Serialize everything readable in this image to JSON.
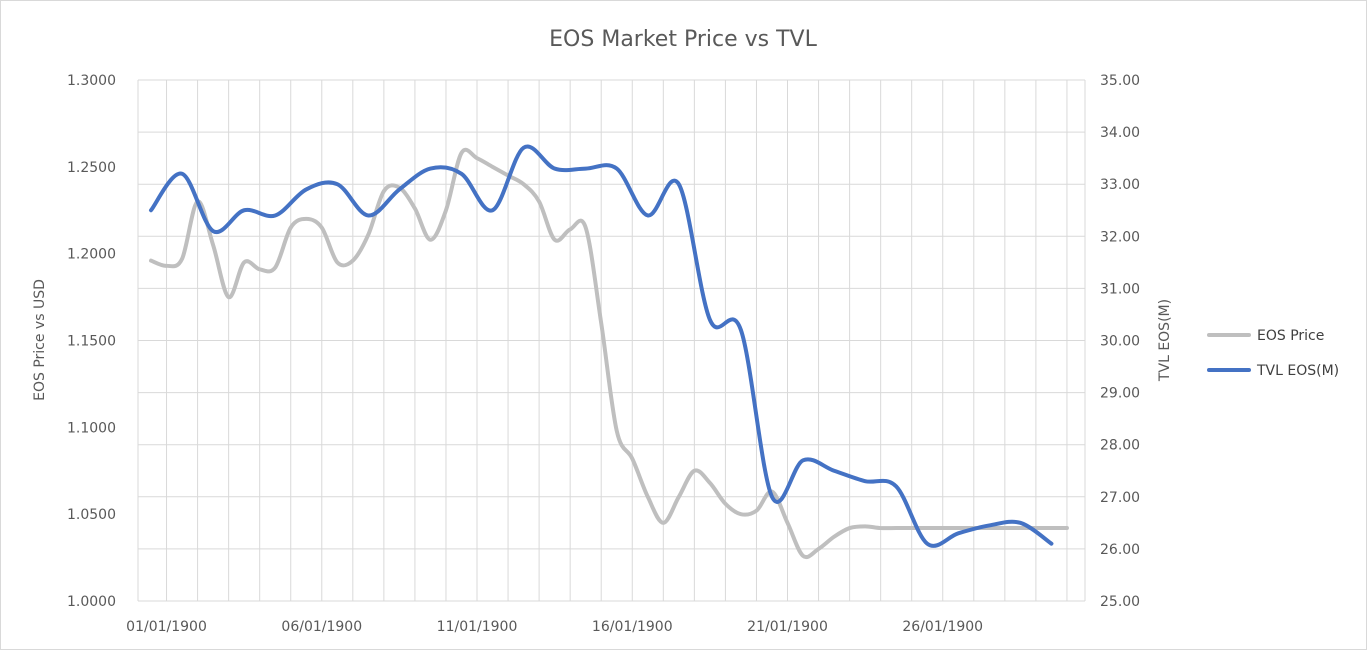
{
  "chart_data": {
    "type": "line",
    "title": "EOS Market Price vs TVL",
    "ylabel": "EOS Price vs USD",
    "y2label": "TVL EOS(M)",
    "xlabel": "",
    "grid": true,
    "legend_position": "right",
    "x_tick_labels": [
      "01/01/1900",
      "06/01/1900",
      "11/01/1900",
      "16/01/1900",
      "21/01/1900",
      "26/01/1900"
    ],
    "x_tick_days": [
      1,
      6,
      11,
      16,
      21,
      26
    ],
    "x_days": [
      0.5,
      1,
      1.5,
      2,
      2.5,
      3,
      3.5,
      4,
      4.5,
      5,
      5.5,
      6,
      6.5,
      7,
      7.5,
      8,
      8.5,
      9,
      9.5,
      10,
      10.5,
      11,
      11.5,
      12,
      12.5,
      13,
      13.5,
      14,
      14.5,
      15,
      15.5,
      16,
      16.5,
      17,
      17.5,
      18,
      18.5,
      19,
      19.5,
      20,
      20.5,
      21,
      21.5,
      22,
      22.5,
      23,
      23.5,
      24,
      24.5,
      25,
      25.5,
      26,
      26.5,
      27,
      27.5,
      28,
      28.5,
      29,
      29.5,
      30
    ],
    "y_left_ticks": [
      "1.0000",
      "1.0500",
      "1.1000",
      "1.1500",
      "1.2000",
      "1.2500",
      "1.3000"
    ],
    "y_left_range": [
      1.0,
      1.3
    ],
    "y_right_ticks": [
      "25.00",
      "26.00",
      "27.00",
      "28.00",
      "29.00",
      "30.00",
      "31.00",
      "32.00",
      "33.00",
      "34.00",
      "35.00"
    ],
    "y_right_range": [
      25,
      35
    ],
    "series": [
      {
        "name": "EOS Price",
        "axis": "left",
        "color": "#bfbfbf",
        "values": [
          1.196,
          1.193,
          1.197,
          1.23,
          1.205,
          1.175,
          1.195,
          1.191,
          1.192,
          1.215,
          1.22,
          1.215,
          1.195,
          1.196,
          1.211,
          1.236,
          1.238,
          1.226,
          1.208,
          1.225,
          1.258,
          1.255,
          1.25,
          1.245,
          1.24,
          1.23,
          1.208,
          1.214,
          1.215,
          1.16,
          1.098,
          1.082,
          1.06,
          1.045,
          1.06,
          1.075,
          1.068,
          1.056,
          1.05,
          1.052,
          1.063,
          1.045,
          1.026,
          1.03,
          1.037,
          1.042,
          1.043,
          1.042,
          1.042,
          1.042,
          1.042,
          1.042,
          1.042,
          1.042,
          1.042,
          1.042,
          1.042,
          1.042,
          1.042,
          1.042
        ]
      },
      {
        "name": "TVL EOS(M)",
        "axis": "right",
        "color": "#4472c4",
        "values": [
          32.5,
          33.2,
          32.1,
          32.5,
          32.4,
          32.9,
          33.0,
          32.4,
          32.9,
          33.3,
          33.2,
          32.5,
          33.7,
          33.3,
          33.3,
          33.3,
          32.4,
          33.0,
          30.4,
          30.2,
          27.0,
          27.7,
          27.5,
          27.3,
          27.2,
          26.1,
          26.3,
          26.45,
          26.5,
          26.1
        ]
      }
    ]
  },
  "legend": {
    "items": [
      {
        "label": "EOS Price",
        "color": "#bfbfbf"
      },
      {
        "label": "TVL EOS(M)",
        "color": "#4472c4"
      }
    ]
  }
}
